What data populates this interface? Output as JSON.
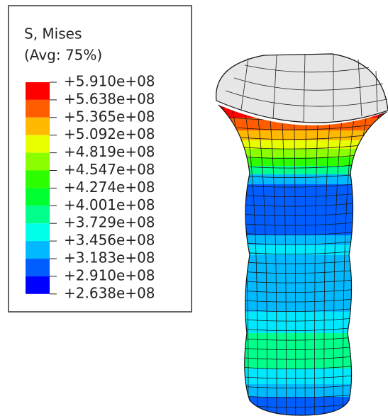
{
  "legend": {
    "title": "S, Mises",
    "subtitle": "(Avg: 75%)",
    "labels": [
      "+5.910e+08",
      "+5.638e+08",
      "+5.365e+08",
      "+5.092e+08",
      "+4.819e+08",
      "+4.547e+08",
      "+4.274e+08",
      "+4.001e+08",
      "+3.729e+08",
      "+3.456e+08",
      "+3.183e+08",
      "+2.910e+08",
      "+2.638e+08"
    ],
    "colors": [
      "#ff0000",
      "#ff5d00",
      "#ffb900",
      "#e8ff00",
      "#8bff00",
      "#2eff00",
      "#00ff2e",
      "#00ff8b",
      "#00ffe8",
      "#00b9ff",
      "#005dff",
      "#0000ff"
    ]
  }
}
